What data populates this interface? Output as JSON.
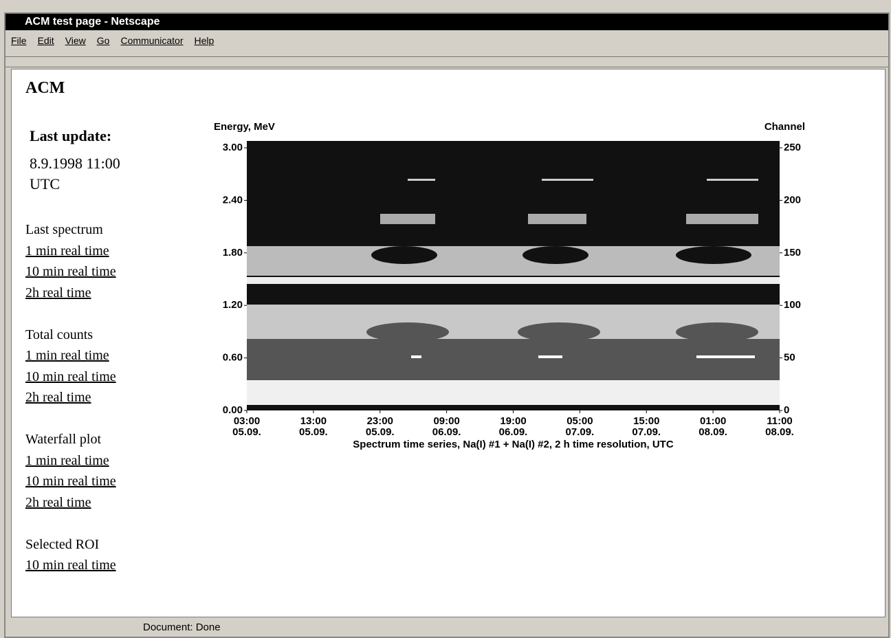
{
  "window": {
    "title": "ACM test page - Netscape"
  },
  "menu": [
    "File",
    "Edit",
    "View",
    "Go",
    "Communicator",
    "Help"
  ],
  "page": {
    "heading": "ACM",
    "last_update_label": "Last update:",
    "last_update": "8.9.1998 11:00",
    "timezone": "UTC",
    "sections": [
      {
        "title": "Last spectrum",
        "links": [
          "1 min real time",
          "10 min real time",
          "2h real time"
        ]
      },
      {
        "title": "Total counts",
        "links": [
          "1 min real time",
          "10 min real time",
          "2h real time"
        ]
      },
      {
        "title": "Waterfall plot",
        "links": [
          "1 min real time",
          "10 min real time",
          "2h real time"
        ]
      },
      {
        "title": "Selected ROI",
        "links": [
          "10 min real time"
        ]
      }
    ]
  },
  "plot": {
    "left_label": "Energy, MeV",
    "right_label": "Channel",
    "left_ticks": [
      "3.00",
      "2.40",
      "1.80",
      "1.20",
      "0.60",
      "0.00"
    ],
    "right_ticks": [
      "250",
      "200",
      "150",
      "100",
      "50",
      "0"
    ],
    "x_ticks": [
      {
        "time": "03:00",
        "date": "05.09."
      },
      {
        "time": "13:00",
        "date": "05.09."
      },
      {
        "time": "23:00",
        "date": "05.09."
      },
      {
        "time": "09:00",
        "date": "06.09."
      },
      {
        "time": "19:00",
        "date": "06.09."
      },
      {
        "time": "05:00",
        "date": "07.09."
      },
      {
        "time": "15:00",
        "date": "07.09."
      },
      {
        "time": "01:00",
        "date": "08.09."
      },
      {
        "time": "11:00",
        "date": "08.09."
      }
    ],
    "caption": "Spectrum time series, Na(I) #1 + Na(I) #2, 2 h time resolution, UTC"
  },
  "status": "Document: Done"
}
